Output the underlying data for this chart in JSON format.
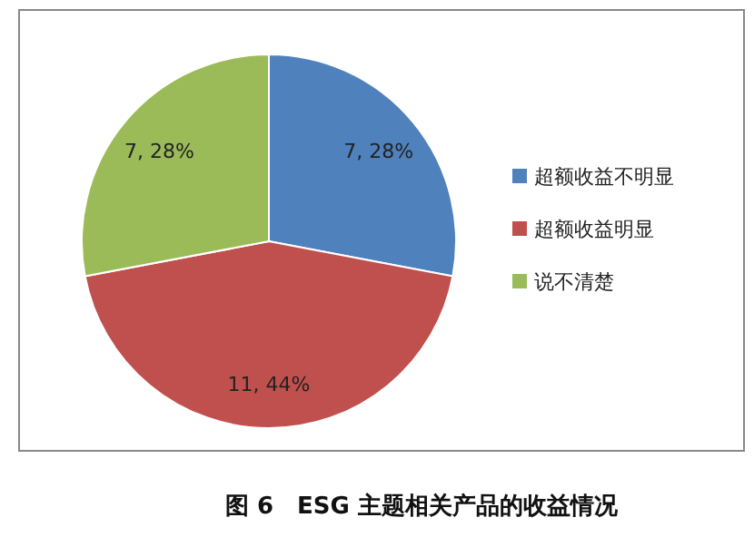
{
  "chart_data": {
    "type": "pie",
    "title": "图 6　ESG 主题相关产品的收益情况",
    "categories": [
      "超额收益不明显",
      "超额收益明显",
      "说不清楚"
    ],
    "values": [
      7,
      11,
      7
    ],
    "colors": [
      "#4f81bd",
      "#c0504d",
      "#9bbb59"
    ],
    "value_labels": [
      "7, 28%",
      "11, 44%",
      "7, 28%"
    ],
    "legend": "right"
  }
}
